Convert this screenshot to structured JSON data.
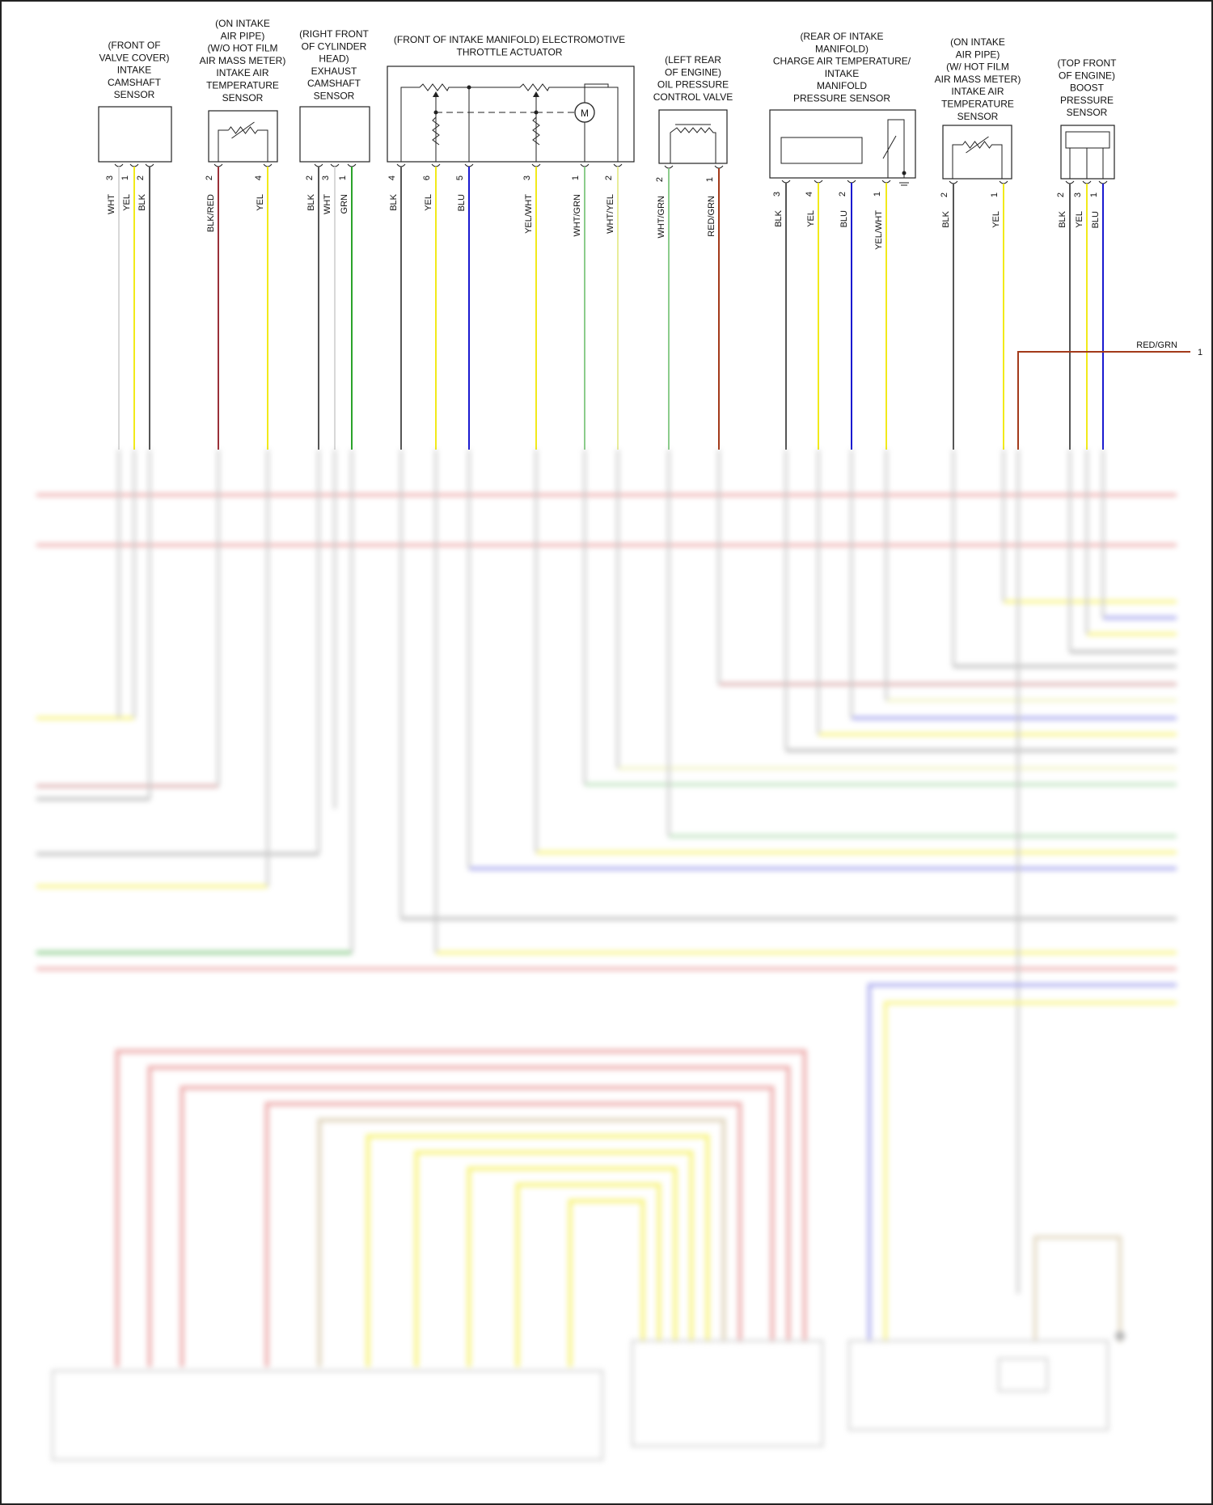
{
  "components": [
    {
      "id": "camshaft",
      "label": [
        "(FRONT OF",
        "VALVE COVER)",
        "INTAKE",
        "CAMSHAFT",
        "SENSOR"
      ],
      "pins": [
        {
          "n": "3",
          "wire": "WHT",
          "color": "#d8d8d8"
        },
        {
          "n": "1",
          "wire": "YEL",
          "color": "#f2ea1a"
        },
        {
          "n": "2",
          "wire": "BLK",
          "color": "#555555"
        }
      ]
    },
    {
      "id": "iat_no_maf",
      "label": [
        "(ON INTAKE",
        "AIR PIPE)",
        "(W/O HOT FILM",
        "AIR MASS METER)",
        "INTAKE AIR",
        "TEMPERATURE",
        "SENSOR"
      ],
      "pins": [
        {
          "n": "2",
          "wire": "BLK/RED",
          "color": "#9a3038"
        },
        {
          "n": "4",
          "wire": "YEL",
          "color": "#f2ea1a"
        }
      ]
    },
    {
      "id": "exhaust_cam",
      "label": [
        "(RIGHT FRONT",
        "OF CYLINDER",
        "HEAD)",
        "EXHAUST",
        "CAMSHAFT",
        "SENSOR"
      ],
      "pins": [
        {
          "n": "2",
          "wire": "BLK",
          "color": "#555555"
        },
        {
          "n": "3",
          "wire": "WHT",
          "color": "#d8d8d8"
        },
        {
          "n": "1",
          "wire": "GRN",
          "color": "#2aa32a"
        }
      ]
    },
    {
      "id": "throttle",
      "label": [
        "(FRONT OF INTAKE MANIFOLD) ELECTROMOTIVE",
        "THROTTLE ACTUATOR"
      ],
      "pins": [
        {
          "n": "4",
          "wire": "BLK",
          "color": "#555555"
        },
        {
          "n": "6",
          "wire": "YEL",
          "color": "#f2ea1a"
        },
        {
          "n": "5",
          "wire": "BLU",
          "color": "#1a1ad0"
        },
        {
          "n": "3",
          "wire": "YEL/WHT",
          "color": "#f2ea1a"
        },
        {
          "n": "1",
          "wire": "WHT/GRN",
          "color": "#8ccc8c"
        },
        {
          "n": "2",
          "wire": "WHT/YEL",
          "color": "#e8ec9a"
        }
      ],
      "motor": "M"
    },
    {
      "id": "oil_valve",
      "label": [
        "(LEFT REAR",
        "OF ENGINE)",
        "OIL PRESSURE",
        "CONTROL VALVE"
      ],
      "pins": [
        {
          "n": "2",
          "wire": "WHT/GRN",
          "color": "#8ccc8c"
        },
        {
          "n": "1",
          "wire": "RED/GRN",
          "color": "#a33a1a"
        }
      ]
    },
    {
      "id": "charge_air",
      "label": [
        "(REAR OF INTAKE",
        "MANIFOLD)",
        "CHARGE AIR TEMPERATURE/",
        "INTAKE",
        "MANIFOLD",
        "PRESSURE SENSOR"
      ],
      "pins": [
        {
          "n": "3",
          "wire": "BLK",
          "color": "#555555"
        },
        {
          "n": "4",
          "wire": "YEL",
          "color": "#f2ea1a"
        },
        {
          "n": "2",
          "wire": "BLU",
          "color": "#1a1ad0"
        },
        {
          "n": "1",
          "wire": "YEL/WHT",
          "color": "#f2ea1a"
        }
      ]
    },
    {
      "id": "iat_maf",
      "label": [
        "(ON INTAKE",
        "AIR PIPE)",
        "(W/ HOT FILM",
        "AIR MASS METER)",
        "INTAKE AIR",
        "TEMPERATURE",
        "SENSOR"
      ],
      "pins": [
        {
          "n": "2",
          "wire": "BLK",
          "color": "#555555"
        },
        {
          "n": "1",
          "wire": "YEL",
          "color": "#f2ea1a"
        }
      ]
    },
    {
      "id": "boost",
      "label": [
        "(TOP FRONT",
        "OF ENGINE)",
        "BOOST",
        "PRESSURE",
        "SENSOR"
      ],
      "pins": [
        {
          "n": "2",
          "wire": "BLK",
          "color": "#555555"
        },
        {
          "n": "3",
          "wire": "YEL",
          "color": "#f2ea1a"
        },
        {
          "n": "1",
          "wire": "BLU",
          "color": "#1a1ad0"
        }
      ]
    }
  ],
  "red_grn_branch": {
    "label": "RED/GRN",
    "pin": "1",
    "color": "#a33a1a"
  }
}
